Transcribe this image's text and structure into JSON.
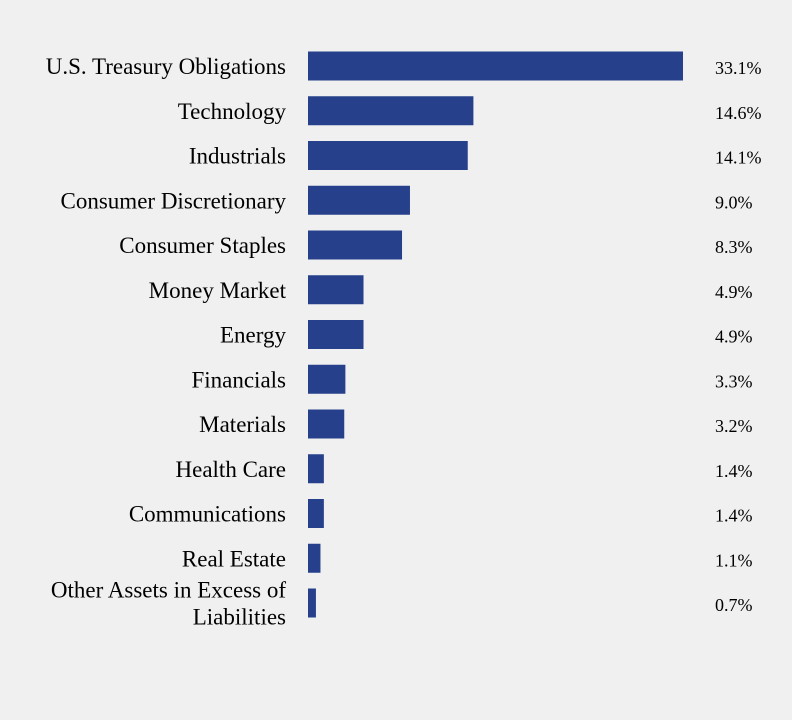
{
  "chart_data": {
    "type": "bar",
    "orientation": "horizontal",
    "categories": [
      "U.S. Treasury Obligations",
      "Technology",
      "Industrials",
      "Consumer Discretionary",
      "Consumer Staples",
      "Money Market",
      "Energy",
      "Financials",
      "Materials",
      "Health Care",
      "Communications",
      "Real Estate",
      "Other Assets in Excess of Liabilities"
    ],
    "category_lines": [
      [
        "U.S. Treasury Obligations"
      ],
      [
        "Technology"
      ],
      [
        "Industrials"
      ],
      [
        "Consumer Discretionary"
      ],
      [
        "Consumer Staples"
      ],
      [
        "Money Market"
      ],
      [
        "Energy"
      ],
      [
        "Financials"
      ],
      [
        "Materials"
      ],
      [
        "Health Care"
      ],
      [
        "Communications"
      ],
      [
        "Real Estate"
      ],
      [
        "Other Assets in Excess of",
        "Liabilities"
      ]
    ],
    "values": [
      33.1,
      14.6,
      14.1,
      9.0,
      8.3,
      4.9,
      4.9,
      3.3,
      3.2,
      1.4,
      1.4,
      1.1,
      0.7
    ],
    "value_labels": [
      "33.1%",
      "14.6%",
      "14.1%",
      "9.0%",
      "8.3%",
      "4.9%",
      "4.9%",
      "3.3%",
      "3.2%",
      "1.4%",
      "1.4%",
      "1.1%",
      "0.7%"
    ],
    "bar_color": "#26408b",
    "background": "#f0f0f0",
    "grid": false,
    "legend": "none"
  }
}
